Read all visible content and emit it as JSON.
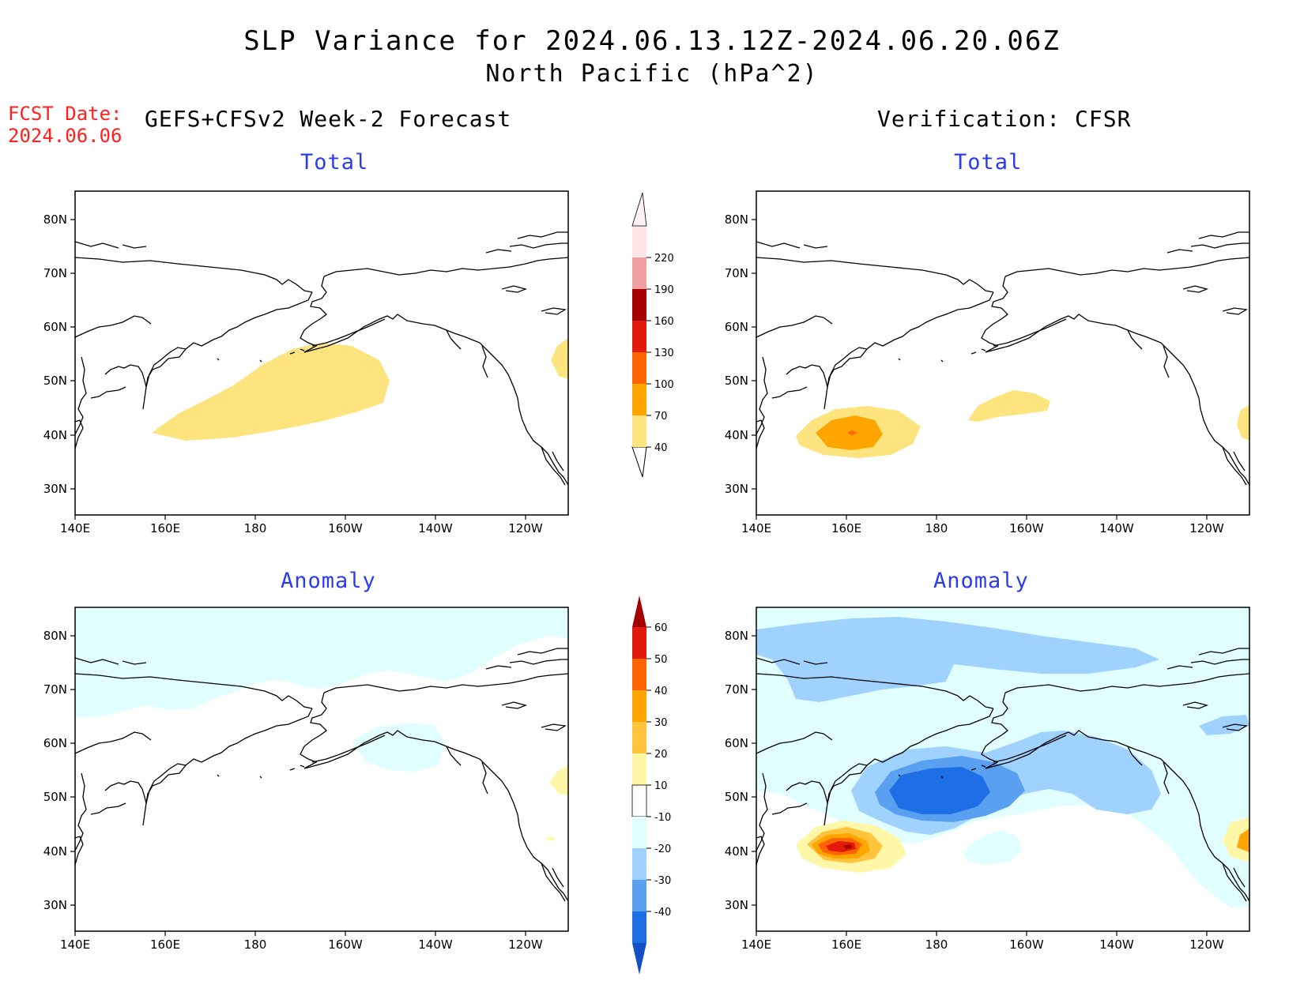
{
  "title": {
    "line1": "SLP Variance for 2024.06.13.12Z-2024.06.20.06Z",
    "line2": "North Pacific (hPa^2)"
  },
  "fcst_date": {
    "label": "FCST Date:",
    "value": "2024.06.06"
  },
  "headers": {
    "left": "GEFS+CFSv2 Week-2 Forecast",
    "right": "Verification: CFSR"
  },
  "panels": {
    "top_left_title": "Total",
    "top_right_title": "Total",
    "bottom_left_title": "Anomaly",
    "bottom_right_title": "Anomaly"
  },
  "axes": {
    "lat_labels": [
      "80N",
      "70N",
      "60N",
      "50N",
      "40N",
      "30N"
    ],
    "lon_labels": [
      "140E",
      "160E",
      "180",
      "160W",
      "140W",
      "120W"
    ]
  },
  "colorbars": {
    "total": {
      "levels": [
        "40",
        "70",
        "100",
        "130",
        "160",
        "190",
        "220"
      ],
      "colors": [
        "#fde47f",
        "#ffa500",
        "#ff6400",
        "#e11a0b",
        "#a50000",
        "#f0a0a0",
        "#ffe6e6"
      ]
    },
    "anomaly": {
      "levels": [
        "60",
        "50",
        "40",
        "30",
        "20",
        "10",
        "-10",
        "-20",
        "-30",
        "-40"
      ],
      "colors": [
        "#a50000",
        "#e11a0b",
        "#ff6400",
        "#ffa500",
        "#ffc43c",
        "#fff7a8",
        "#ffffff",
        "#e1ffff",
        "#a0d2ff",
        "#5aa0f0",
        "#1e6ee6",
        "#1450c8"
      ]
    }
  }
}
